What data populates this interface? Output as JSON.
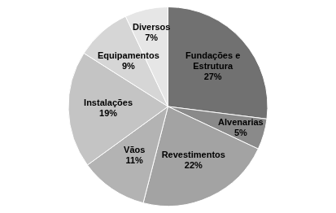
{
  "chart_data": {
    "type": "pie",
    "categories": [
      "Fundações e Estrutura",
      "Alvenarias",
      "Revestimentos",
      "Vãos",
      "Instalações",
      "Equipamentos",
      "Diversos"
    ],
    "values": [
      27,
      5,
      22,
      11,
      19,
      9,
      7
    ],
    "value_labels": [
      "27%",
      "5%",
      "22%",
      "11%",
      "19%",
      "9%",
      "7%"
    ],
    "colors": [
      "#717171",
      "#8a8a8a",
      "#a3a3a3",
      "#b3b3b3",
      "#c4c4c4",
      "#d6d6d6",
      "#e6e6e6"
    ],
    "data_labels": true
  }
}
